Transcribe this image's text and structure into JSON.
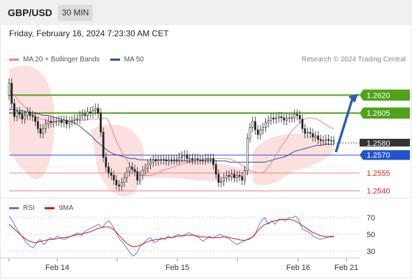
{
  "header": {
    "symbol": "GBP/USD",
    "interval": "30 MIN"
  },
  "datetime": "Friday, February 16, 2024 7:23:30 AM CET",
  "legend": {
    "ma20_label": "MA 20 + Bollinger Bands",
    "ma50_label": "MA 50",
    "ma20_color": "#f08080",
    "ma50_color": "#2a4f8f"
  },
  "attribution": "Research © 2024 Trading Central",
  "rsi_legend": {
    "rsi_label": "RSI",
    "ma_label": "9MA",
    "rsi_color": "#5b7fd6",
    "ma_color": "#e01010"
  },
  "colors": {
    "resistance": "#4fa319",
    "support": "#f08080",
    "pivot": "#2255cc",
    "current": "#333333",
    "arrow": "#2c5fa8",
    "band_fill": "#fbdada",
    "candle_up": "#ffffff",
    "candle_down": "#222222"
  },
  "chart_data": [
    {
      "type": "candlestick",
      "title": "GBP/USD",
      "x_tick_labels": [
        "Feb 14",
        "Feb 15",
        "Feb 16",
        "Feb 21"
      ],
      "levels": [
        {
          "label": "1.2620",
          "value": 1.262,
          "kind": "resistance"
        },
        {
          "label": "1.2605",
          "value": 1.2605,
          "kind": "resistance"
        },
        {
          "label": "1.2580",
          "value": 1.258,
          "kind": "current"
        },
        {
          "label": "1.2570",
          "value": 1.257,
          "kind": "pivot"
        },
        {
          "label": "1.2555",
          "value": 1.2555,
          "kind": "support"
        },
        {
          "label": "1.2540",
          "value": 1.254,
          "kind": "support"
        }
      ],
      "ylim": [
        1.2534,
        1.264
      ],
      "close": [
        1.263,
        1.2613,
        1.2602,
        1.2606,
        1.2604,
        1.26,
        1.2603,
        1.2606,
        1.2603,
        1.2602,
        1.2598,
        1.2592,
        1.2588,
        1.2592,
        1.2596,
        1.2598,
        1.2597,
        1.2598,
        1.2598,
        1.2599,
        1.2597,
        1.2599,
        1.2596,
        1.2598,
        1.2599,
        1.26,
        1.26,
        1.2603,
        1.2604,
        1.2603,
        1.2606,
        1.2605,
        1.2607,
        1.2609,
        1.2605,
        1.2589,
        1.2568,
        1.256,
        1.2555,
        1.2553,
        1.2549,
        1.2545,
        1.2544,
        1.2547,
        1.2551,
        1.2556,
        1.256,
        1.2558,
        1.2556,
        1.2549,
        1.2553,
        1.2557,
        1.2559,
        1.2562,
        1.2564,
        1.2566,
        1.2565,
        1.2566,
        1.2566,
        1.2566,
        1.2565,
        1.2566,
        1.2566,
        1.2566,
        1.2566,
        1.2568,
        1.2569,
        1.257,
        1.2567,
        1.2567,
        1.2566,
        1.2567,
        1.2566,
        1.2566,
        1.2566,
        1.2567,
        1.2567,
        1.2567,
        1.2562,
        1.2554,
        1.2547,
        1.2548,
        1.2551,
        1.2553,
        1.2552,
        1.2554,
        1.2551,
        1.2553,
        1.2552,
        1.2549,
        1.2557,
        1.2584,
        1.2593,
        1.2598,
        1.2591,
        1.2587,
        1.2591,
        1.2593,
        1.2597,
        1.2599,
        1.2601,
        1.26,
        1.2601,
        1.2602,
        1.2601,
        1.2599,
        1.2601,
        1.2601,
        1.2601,
        1.2604,
        1.2603,
        1.26,
        1.2592,
        1.2588,
        1.2589,
        1.2588,
        1.2585,
        1.2586,
        1.2583,
        1.2582,
        1.2582,
        1.2583,
        1.2582,
        1.2582,
        1.2582
      ],
      "ma20": [
        1.2625,
        1.2621,
        1.2618,
        1.2614,
        1.2611,
        1.2608,
        1.2605,
        1.2603,
        1.2601,
        1.26,
        1.2599,
        1.2598,
        1.2598,
        1.2598,
        1.2598,
        1.2598,
        1.2598,
        1.2598,
        1.2599,
        1.2599,
        1.2599,
        1.2599,
        1.26,
        1.26,
        1.26,
        1.26,
        1.2601,
        1.26,
        1.2593,
        1.2585,
        1.2578,
        1.2572,
        1.2567,
        1.2562,
        1.2558,
        1.2556,
        1.2554,
        1.2553,
        1.2553,
        1.2553,
        1.2554,
        1.2555,
        1.2557,
        1.2558,
        1.2559,
        1.256,
        1.2561,
        1.2562,
        1.2563,
        1.2564,
        1.2564,
        1.2565,
        1.2565,
        1.2566,
        1.2566,
        1.2566,
        1.2567,
        1.2567,
        1.2567,
        1.2567,
        1.2567,
        1.2566,
        1.2565,
        1.2563,
        1.2561,
        1.2559,
        1.2557,
        1.2556,
        1.2555,
        1.2555,
        1.2556,
        1.256,
        1.2564,
        1.2569,
        1.2574,
        1.2579,
        1.2583,
        1.2588,
        1.2592,
        1.2595,
        1.2598,
        1.26,
        1.2601,
        1.2601,
        1.26,
        1.2599,
        1.2597,
        1.2595,
        1.2593,
        1.2592
      ],
      "ma50": [
        1.2608,
        1.2608,
        1.2607,
        1.2607,
        1.2606,
        1.2605,
        1.2605,
        1.2604,
        1.2603,
        1.2603,
        1.2602,
        1.2601,
        1.26,
        1.2599,
        1.2598,
        1.2597,
        1.2595,
        1.2592,
        1.2589,
        1.2586,
        1.2582,
        1.2579,
        1.2576,
        1.2573,
        1.2571,
        1.257,
        1.2569,
        1.2568,
        1.2567,
        1.2567,
        1.2566,
        1.2566,
        1.2566,
        1.2566,
        1.2566,
        1.2566,
        1.2566,
        1.2565,
        1.2565,
        1.2565,
        1.2565,
        1.2565,
        1.2565,
        1.2565,
        1.2565,
        1.2565,
        1.2565,
        1.2565,
        1.2565,
        1.2565,
        1.2565,
        1.2564,
        1.2564,
        1.2564,
        1.2564,
        1.2564,
        1.2564,
        1.2564,
        1.2564,
        1.2564,
        1.2565,
        1.2566,
        1.2567,
        1.2568,
        1.2569,
        1.2571,
        1.2573,
        1.2574,
        1.2575,
        1.2576,
        1.2577,
        1.2578,
        1.2578,
        1.2579,
        1.2579,
        1.2579
      ]
    },
    {
      "type": "line",
      "series": [
        {
          "name": "RSI"
        },
        {
          "name": "9MA"
        }
      ],
      "y_tick_labels": [
        "70",
        "50",
        "30"
      ],
      "ylim": [
        20,
        80
      ],
      "rsi": [
        72,
        66,
        58,
        52,
        46,
        40,
        36,
        34,
        40,
        44,
        38,
        42,
        46,
        44,
        48,
        45,
        44,
        46,
        48,
        50,
        52,
        48,
        54,
        56,
        58,
        60,
        62,
        58,
        64,
        66,
        60,
        52,
        44,
        40,
        34,
        28,
        24,
        28,
        36,
        40,
        44,
        46,
        40,
        42,
        46,
        44,
        48,
        46,
        48,
        50,
        48,
        50,
        52,
        50,
        48,
        46,
        42,
        44,
        48,
        46,
        48,
        50,
        48,
        46,
        44,
        40,
        38,
        40,
        42,
        44,
        46,
        48,
        58,
        66,
        70,
        62,
        66,
        62,
        68,
        68,
        66,
        70,
        70,
        72,
        66,
        56,
        54,
        52,
        48,
        46,
        44,
        45,
        46,
        48,
        48
      ],
      "ma9": [
        62,
        58,
        54,
        50,
        46,
        43,
        41,
        40,
        41,
        42,
        43,
        44,
        44,
        45,
        46,
        46,
        47,
        48,
        49,
        50,
        51,
        52,
        53,
        55,
        57,
        58,
        59,
        59,
        57,
        53,
        48,
        43,
        39,
        36,
        35,
        36,
        38,
        40,
        42,
        43,
        44,
        44,
        45,
        46,
        46,
        47,
        48,
        48,
        49,
        49,
        49,
        48,
        47,
        47,
        46,
        46,
        46,
        46,
        47,
        47,
        46,
        45,
        44,
        43,
        43,
        44,
        47,
        52,
        57,
        61,
        63,
        65,
        66,
        67,
        68,
        68,
        68,
        67,
        65,
        62,
        59,
        56,
        53,
        51,
        49,
        48,
        47,
        47,
        47
      ]
    }
  ]
}
